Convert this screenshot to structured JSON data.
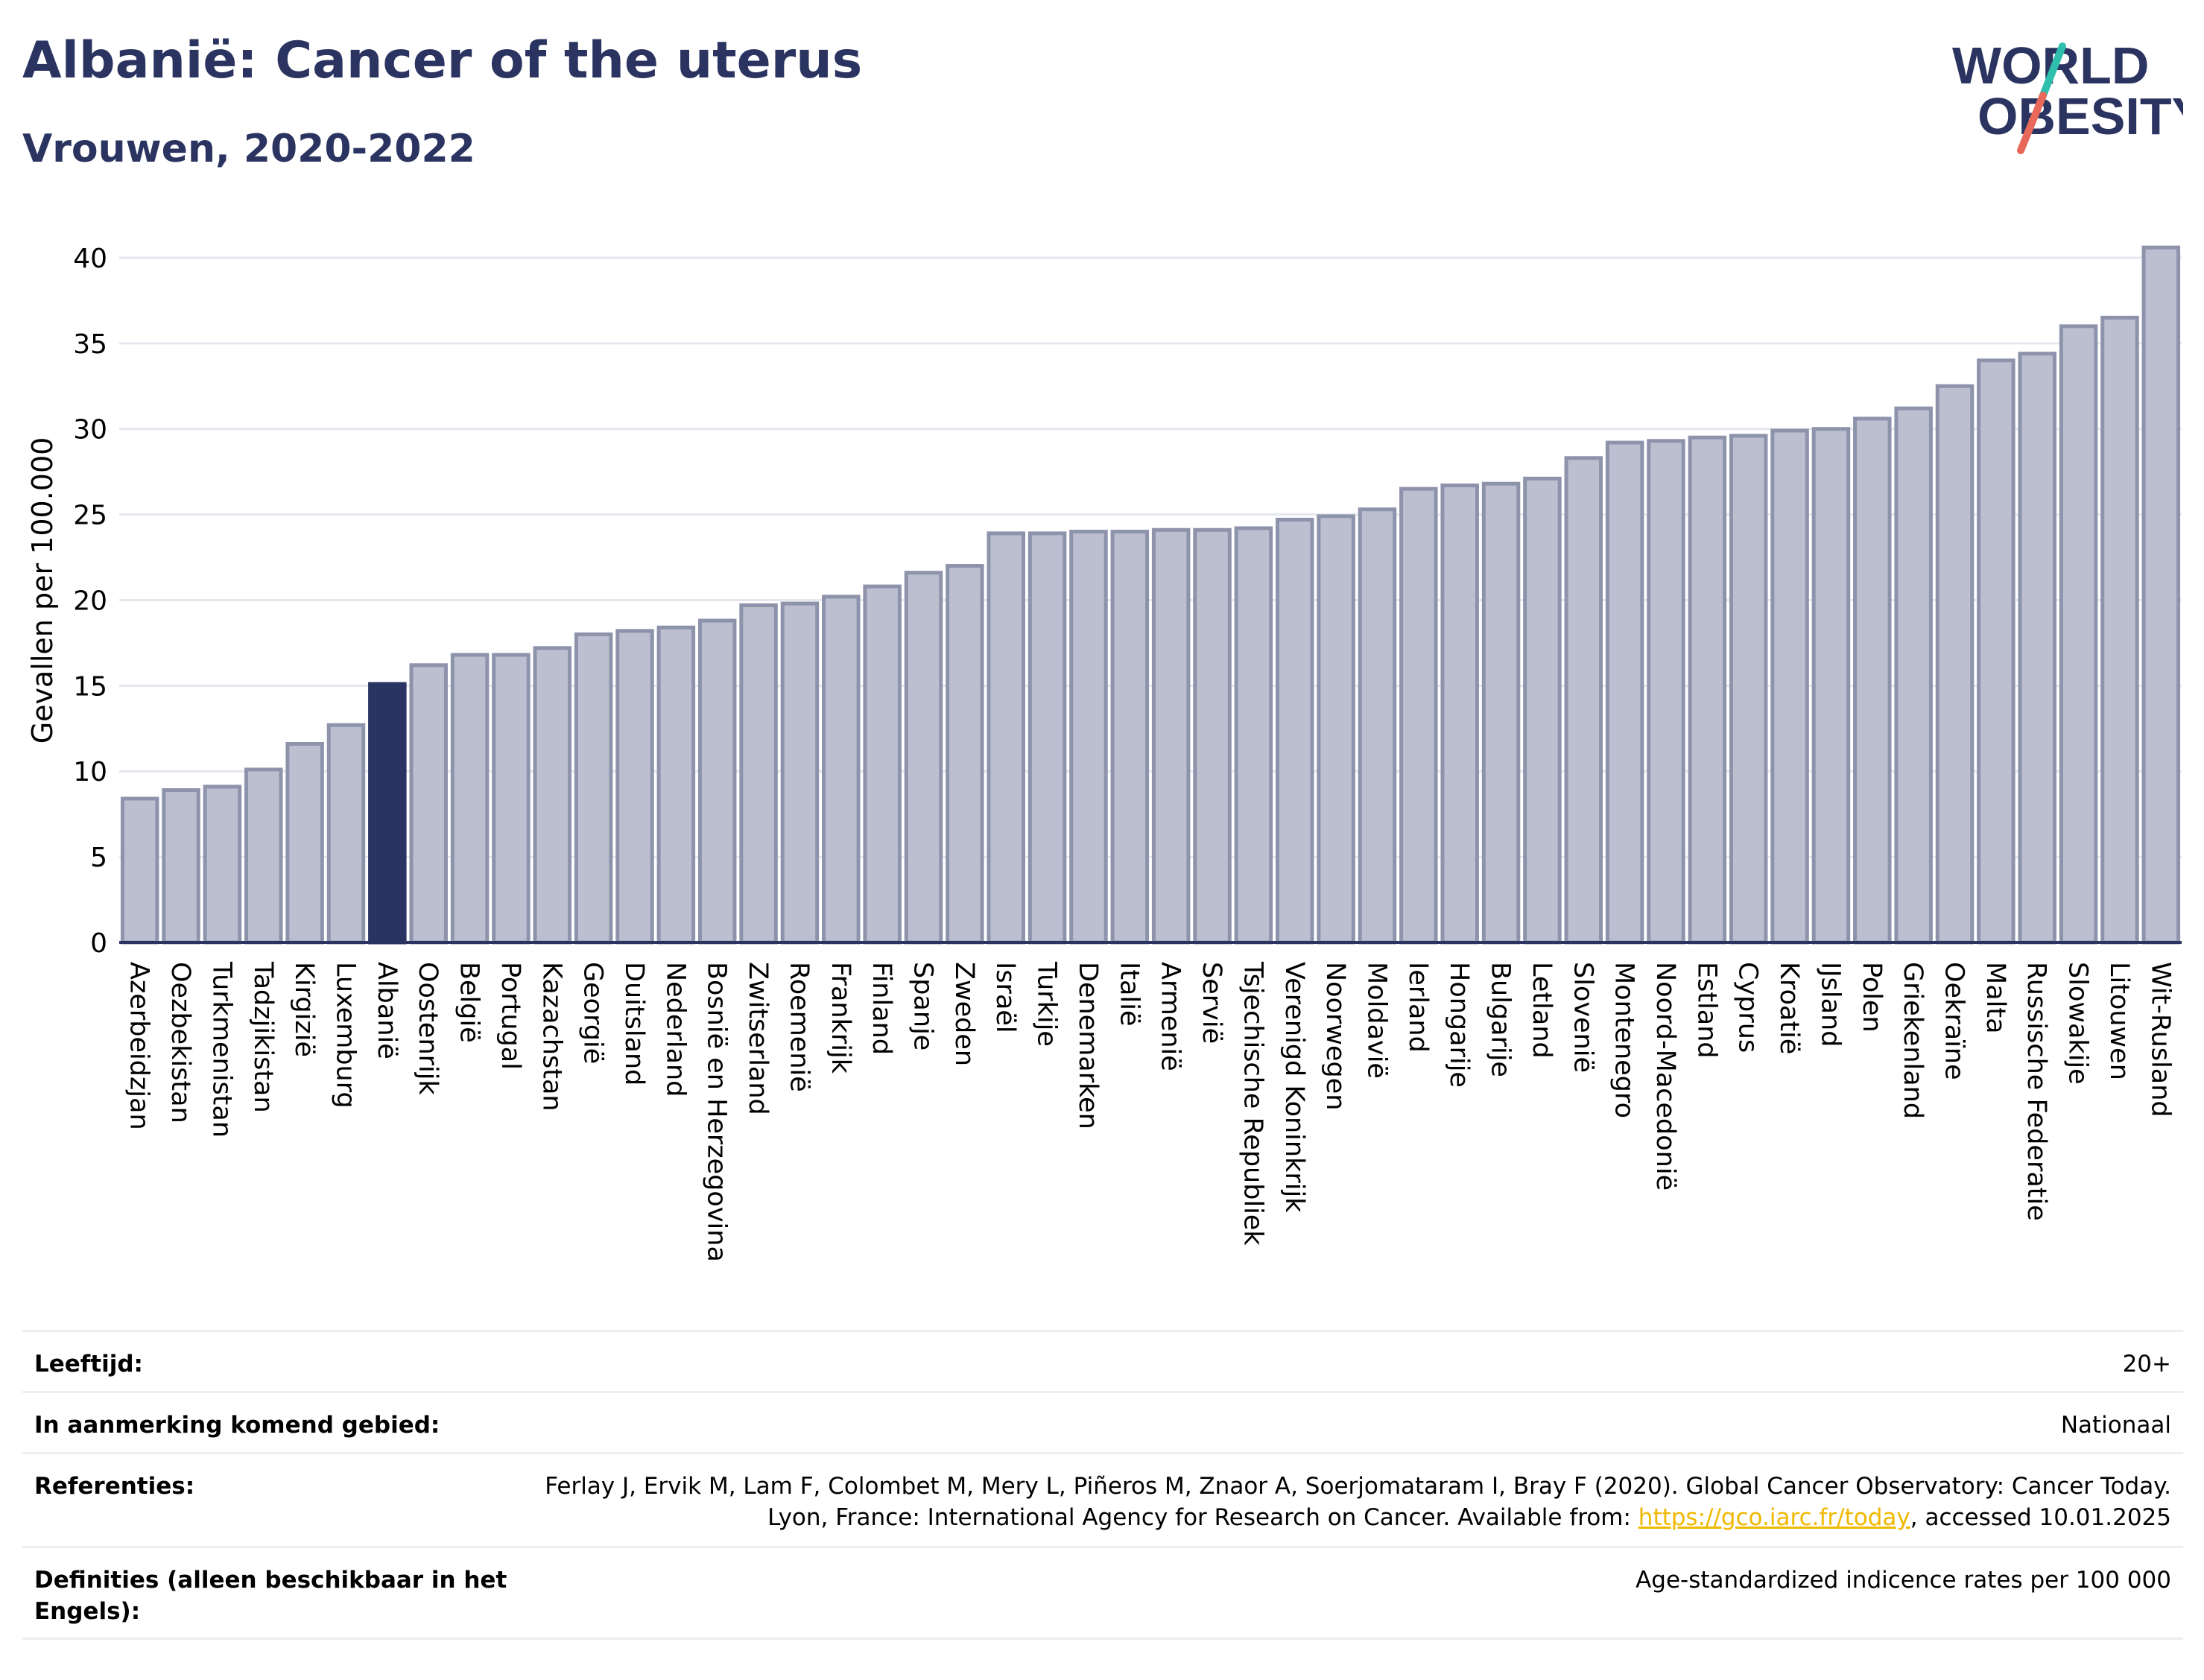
{
  "header": {
    "title": "Albanië: Cancer of the uterus",
    "subtitle": "Vrouwen, 2020-2022"
  },
  "logo": {
    "line1": "WORLD",
    "line2": "OBESITY",
    "icon": "world-obesity-logo"
  },
  "colors": {
    "bar": "#bbbfcf",
    "bar_border": "#8e93ac",
    "highlight": "#293462",
    "grid": "#e6e7ee",
    "axis_line": "#2b3460",
    "logo_slash_top": "#2fbfad",
    "logo_slash_bottom": "#e8685a"
  },
  "chart_data": {
    "type": "bar",
    "ylabel": "Gevallen per 100.000",
    "ylim": [
      0,
      42
    ],
    "yticks": [
      0,
      5,
      10,
      15,
      20,
      25,
      30,
      35,
      40
    ],
    "grid": true,
    "highlight": "Albanië",
    "categories": [
      "Azerbeidzjan",
      "Oezbekistan",
      "Turkmenistan",
      "Tadzjikistan",
      "Kirgizië",
      "Luxemburg",
      "Albanië",
      "Oostenrijk",
      "België",
      "Portugal",
      "Kazachstan",
      "Georgië",
      "Duitsland",
      "Nederland",
      "Bosnië en Herzegovina",
      "Zwitserland",
      "Roemenië",
      "Frankrijk",
      "Finland",
      "Spanje",
      "Zweden",
      "Israël",
      "Turkije",
      "Denemarken",
      "Italië",
      "Armenië",
      "Servië",
      "Tsjechische Republiek",
      "Verenigd Koninkrijk",
      "Noorwegen",
      "Moldavië",
      "Ierland",
      "Hongarije",
      "Bulgarije",
      "Letland",
      "Slovenië",
      "Montenegro",
      "Noord-Macedonië",
      "Estland",
      "Cyprus",
      "Kroatië",
      "IJsland",
      "Polen",
      "Griekenland",
      "Oekraïne",
      "Malta",
      "Russische Federatie",
      "Slowakije",
      "Litouwen",
      "Wit-Rusland"
    ],
    "values": [
      8.4,
      8.9,
      9.1,
      10.1,
      11.6,
      12.7,
      15.1,
      16.2,
      16.8,
      16.8,
      17.2,
      18.0,
      18.2,
      18.4,
      18.8,
      19.7,
      19.8,
      20.2,
      20.8,
      21.6,
      22.0,
      23.9,
      23.9,
      24.0,
      24.0,
      24.1,
      24.1,
      24.2,
      24.7,
      24.9,
      25.3,
      26.5,
      26.7,
      26.8,
      27.1,
      28.3,
      29.2,
      29.3,
      29.5,
      29.6,
      29.9,
      30.0,
      30.6,
      31.2,
      32.5,
      34.0,
      34.4,
      36.0,
      36.5,
      40.6
    ]
  },
  "info": {
    "rows": [
      {
        "label": "Leeftijd:",
        "value": "20+"
      },
      {
        "label": "In aanmerking komend gebied:",
        "value": "Nationaal"
      },
      {
        "label": "Referenties:",
        "value_before": "Ferlay J, Ervik M, Lam F, Colombet M, Mery L, Piñeros M, Znaor A, Soerjomataram I, Bray F (2020). Global Cancer Observatory: Cancer Today. Lyon, France: International Agency for Research on Cancer. Available from: ",
        "link": "https://gco.iarc.fr/today",
        "value_after": ", accessed 10.01.2025"
      },
      {
        "label": "Definities (alleen beschikbaar in het Engels):",
        "value": "Age-standardized indicence rates per 100 000"
      }
    ]
  }
}
